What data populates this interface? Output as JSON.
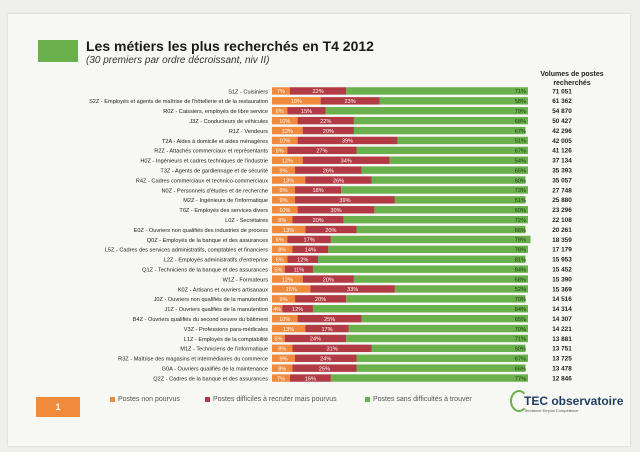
{
  "header": {
    "title": "Les métiers les plus recherchés en T4 2012",
    "subtitle": "(30 premiers par ordre décroissant, niv II)",
    "volume_header": "Volumes de postes recherchés"
  },
  "colors": {
    "non_pourvus": "#f08a3c",
    "difficiles": "#b23a44",
    "sans_difficulte": "#6ab04c",
    "title_accent": "#6ab04c"
  },
  "chart_data": {
    "type": "bar",
    "orientation": "horizontal-stacked-percent",
    "categories": [
      "S1Z - Cuisiniers",
      "S2Z - Employés et agents de maîtrise de l'hôtellerie et de la restauration",
      "R0Z - Caissiers, employés de libre service",
      "J3Z - Conducteurs de véhicules",
      "R1Z - Vendeurs",
      "T2A - Aides à domicile et aides ménagères",
      "R2Z - Attachés commerciaux et représentants",
      "H0Z - Ingénieurs et cadres techniques de l'industrie",
      "T3Z - Agents de gardiennage et de sécurité",
      "R4Z - Cadres commerciaux et technico-commerciaux",
      "N0Z - Personnels d'études et de recherche",
      "M2Z - Ingénieurs de l'informatique",
      "T6Z - Employés des services divers",
      "L0Z - Secrétaires",
      "E0Z - Ouvriers non qualifiés des industries de process",
      "Q0Z - Employés de la banque et des assurances",
      "L5Z - Cadres des services administratifs, comptables et financiers",
      "L2Z - Employés administratifs d'entreprise",
      "Q1Z - Techniciens de la banque et des assurances",
      "W1Z - Formateurs",
      "K0Z - Artisans et ouvriers artisanaux",
      "J0Z - Ouvriers non qualifiés de la manutention",
      "J1Z - Ouvriers qualifiés de la manutention",
      "B4Z - Ouvriers qualifiés du second oeuvre du bâtiment",
      "V3Z - Professions para-médicales",
      "L1Z - Employés de la comptabilité",
      "M1Z - Techniciens de l'informatique",
      "R3Z - Maîtrise des magasins et intermédiaires du commerce",
      "G0A - Ouvriers qualifiés de la maintenance",
      "Q2Z - Cadres de la banque et des assurances"
    ],
    "series": [
      {
        "name": "Postes non pourvus",
        "values": [
          7,
          19,
          6,
          10,
          12,
          10,
          6,
          12,
          9,
          13,
          9,
          9,
          10,
          8,
          13,
          6,
          8,
          6,
          5,
          12,
          15,
          9,
          4,
          10,
          13,
          5,
          8,
          9,
          8,
          7
        ]
      },
      {
        "name": "Postes difficiles à recruter mais pourvus",
        "values": [
          22,
          23,
          15,
          22,
          20,
          39,
          27,
          34,
          26,
          26,
          18,
          39,
          30,
          20,
          20,
          17,
          14,
          12,
          11,
          20,
          33,
          20,
          12,
          25,
          17,
          24,
          31,
          24,
          25,
          16
        ]
      },
      {
        "name": "Postes sans difficultés à trouver",
        "values": [
          71,
          58,
          79,
          68,
          67,
          51,
          67,
          54,
          65,
          60,
          73,
          51,
          60,
          72,
          66,
          78,
          78,
          81,
          84,
          68,
          52,
          70,
          84,
          65,
          70,
          71,
          60,
          67,
          66,
          77
        ]
      }
    ],
    "labels_non_pourvus": [
      "7%",
      "19%",
      "6%",
      "10%",
      "12%",
      "10%",
      "6%",
      "12%",
      "9%",
      "13%",
      "9%",
      "9%",
      "10%",
      "8%",
      "13%",
      "6%",
      "8%",
      "6%",
      "5%",
      "12%",
      "15%",
      "9%",
      "4%",
      "10%",
      "13%",
      "5%",
      "8%",
      "9%",
      "8%",
      "7%"
    ],
    "labels_difficiles": [
      "22%",
      "23%",
      "15%",
      "22%",
      "20%",
      "39%",
      "27%",
      "34%",
      "26%",
      "26%",
      "18%",
      "39%",
      "30%",
      "20%",
      "20%",
      "17%",
      "14%",
      "12%",
      "11%",
      "20%",
      "33%",
      "20%",
      "12%",
      "25%",
      "17%",
      "24%",
      "31%",
      "24%",
      "25%",
      "16%"
    ],
    "labels_sans": [
      "71%",
      "58%",
      "79%",
      "68%",
      "67%",
      "51%",
      "67%",
      "54%",
      "65%",
      "60%",
      "73%",
      "51%",
      "60%",
      "72%",
      "66%",
      "78%",
      "78%",
      "81%",
      "84%",
      "68%",
      "52%",
      "70%",
      "84%",
      "65%",
      "70%",
      "71%",
      "60%",
      "67%",
      "66%",
      "77%"
    ],
    "volumes": [
      "71 051",
      "61 362",
      "54 870",
      "50 427",
      "42 296",
      "42 005",
      "41 126",
      "37 134",
      "35 393",
      "35 057",
      "27 748",
      "25 880",
      "23 296",
      "22 108",
      "20 261",
      "18 359",
      "17 179",
      "15 953",
      "15 452",
      "15 390",
      "15 369",
      "14 516",
      "14 314",
      "14 307",
      "14 221",
      "13 881",
      "13 751",
      "13 725",
      "13 478",
      "12 846"
    ],
    "legend": [
      "Postes non pourvus",
      "Postes difficiles à recruter mais pourvus",
      "Postes sans difficultés à trouver"
    ],
    "legend_placement": "bottom",
    "xlim": [
      0,
      100
    ]
  },
  "footer": {
    "page_number": "1",
    "logo_name": "TEC observatoire",
    "logo_tagline": "Tendance Emploi Compétence"
  }
}
